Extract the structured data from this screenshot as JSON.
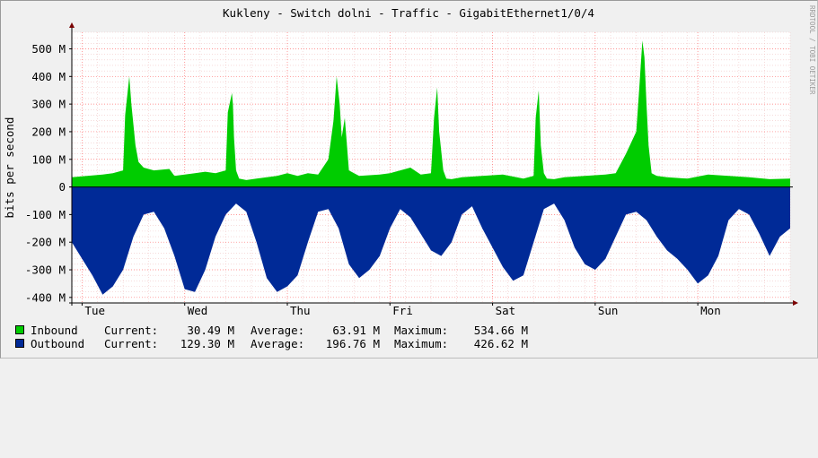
{
  "chart_data": {
    "type": "area",
    "title": "Kukleny - Switch dolni - Traffic - GigabitEthernet1/0/4",
    "ylabel": "bits per second",
    "watermark": "RRDTOOL / TOBI OETIKER",
    "ylim": [
      -420,
      560
    ],
    "y_unit": "M",
    "y_ticks": [
      "500 M",
      "400 M",
      "300 M",
      "200 M",
      "100 M",
      "0",
      "-100 M",
      "-200 M",
      "-300 M",
      "-400 M"
    ],
    "y_tick_values": [
      500,
      400,
      300,
      200,
      100,
      0,
      -100,
      -200,
      -300,
      -400
    ],
    "x_ticks": [
      "Tue",
      "Wed",
      "Thu",
      "Fri",
      "Sat",
      "Sun",
      "Mon"
    ],
    "x_tick_positions": [
      0.1,
      1.1,
      2.1,
      3.1,
      4.1,
      5.1,
      6.1
    ],
    "xlim": [
      0,
      7.0
    ],
    "grid": true,
    "colors": {
      "inbound": "#00cc00",
      "outbound": "#002a97",
      "grid": "#ff0000",
      "axis": "#000000"
    },
    "series": [
      {
        "name": "Inbound",
        "x": [
          0,
          0.15,
          0.3,
          0.4,
          0.5,
          0.52,
          0.56,
          0.58,
          0.62,
          0.65,
          0.7,
          0.8,
          0.95,
          1.0,
          1.1,
          1.2,
          1.3,
          1.4,
          1.5,
          1.52,
          1.56,
          1.57,
          1.58,
          1.6,
          1.63,
          1.7,
          1.8,
          2.0,
          2.1,
          2.2,
          2.3,
          2.4,
          2.5,
          2.55,
          2.58,
          2.61,
          2.63,
          2.66,
          2.7,
          2.75,
          2.8,
          3.0,
          3.1,
          3.2,
          3.3,
          3.4,
          3.5,
          3.53,
          3.56,
          3.58,
          3.62,
          3.65,
          3.7,
          3.8,
          4.0,
          4.2,
          4.4,
          4.5,
          4.52,
          4.55,
          4.57,
          4.6,
          4.63,
          4.7,
          4.8,
          5.0,
          5.2,
          5.3,
          5.4,
          5.5,
          5.53,
          5.56,
          5.58,
          5.6,
          5.62,
          5.65,
          5.7,
          5.8,
          6.0,
          6.2,
          6.4,
          6.6,
          6.8,
          7.0
        ],
        "values": [
          35,
          40,
          45,
          50,
          60,
          260,
          400,
          300,
          150,
          90,
          70,
          60,
          65,
          40,
          45,
          50,
          55,
          50,
          60,
          270,
          340,
          300,
          180,
          60,
          30,
          25,
          30,
          40,
          50,
          40,
          50,
          45,
          100,
          240,
          400,
          300,
          180,
          250,
          60,
          50,
          40,
          45,
          50,
          60,
          70,
          45,
          50,
          250,
          360,
          200,
          60,
          30,
          28,
          35,
          40,
          45,
          30,
          40,
          250,
          350,
          150,
          50,
          30,
          28,
          35,
          40,
          45,
          50,
          120,
          200,
          360,
          530,
          470,
          300,
          150,
          50,
          40,
          35,
          30,
          45,
          40,
          35,
          28,
          30
        ]
      },
      {
        "name": "Outbound",
        "x": [
          0,
          0.1,
          0.2,
          0.3,
          0.4,
          0.5,
          0.6,
          0.7,
          0.8,
          0.9,
          1.0,
          1.1,
          1.2,
          1.3,
          1.4,
          1.5,
          1.6,
          1.7,
          1.8,
          1.9,
          2.0,
          2.1,
          2.2,
          2.3,
          2.4,
          2.5,
          2.6,
          2.7,
          2.8,
          2.9,
          3.0,
          3.1,
          3.2,
          3.3,
          3.4,
          3.5,
          3.6,
          3.7,
          3.8,
          3.9,
          4.0,
          4.1,
          4.2,
          4.3,
          4.4,
          4.5,
          4.6,
          4.7,
          4.8,
          4.9,
          5.0,
          5.1,
          5.2,
          5.3,
          5.4,
          5.5,
          5.6,
          5.7,
          5.8,
          5.9,
          6.0,
          6.1,
          6.2,
          6.3,
          6.4,
          6.5,
          6.6,
          6.7,
          6.8,
          6.9,
          7.0
        ],
        "values": [
          -200,
          -260,
          -320,
          -390,
          -360,
          -300,
          -180,
          -100,
          -90,
          -150,
          -250,
          -370,
          -380,
          -300,
          -180,
          -100,
          -60,
          -90,
          -200,
          -330,
          -380,
          -360,
          -320,
          -200,
          -90,
          -80,
          -150,
          -280,
          -330,
          -300,
          -250,
          -150,
          -80,
          -110,
          -170,
          -230,
          -250,
          -200,
          -100,
          -70,
          -150,
          -220,
          -290,
          -340,
          -320,
          -200,
          -80,
          -60,
          -120,
          -220,
          -280,
          -300,
          -260,
          -180,
          -100,
          -90,
          -120,
          -180,
          -230,
          -260,
          -300,
          -350,
          -320,
          -250,
          -120,
          -80,
          -100,
          -170,
          -250,
          -180,
          -150
        ]
      }
    ]
  },
  "legend": [
    {
      "label": "Inbound ",
      "current_label": "Current:",
      "current": "30.49 M",
      "average_label": "Average:",
      "average": "63.91 M",
      "maximum_label": "Maximum:",
      "maximum": "534.66 M"
    },
    {
      "label": "Outbound",
      "current_label": "Current:",
      "current": "129.30 M",
      "average_label": "Average:",
      "average": "196.76 M",
      "maximum_label": "Maximum:",
      "maximum": "426.62 M"
    }
  ]
}
